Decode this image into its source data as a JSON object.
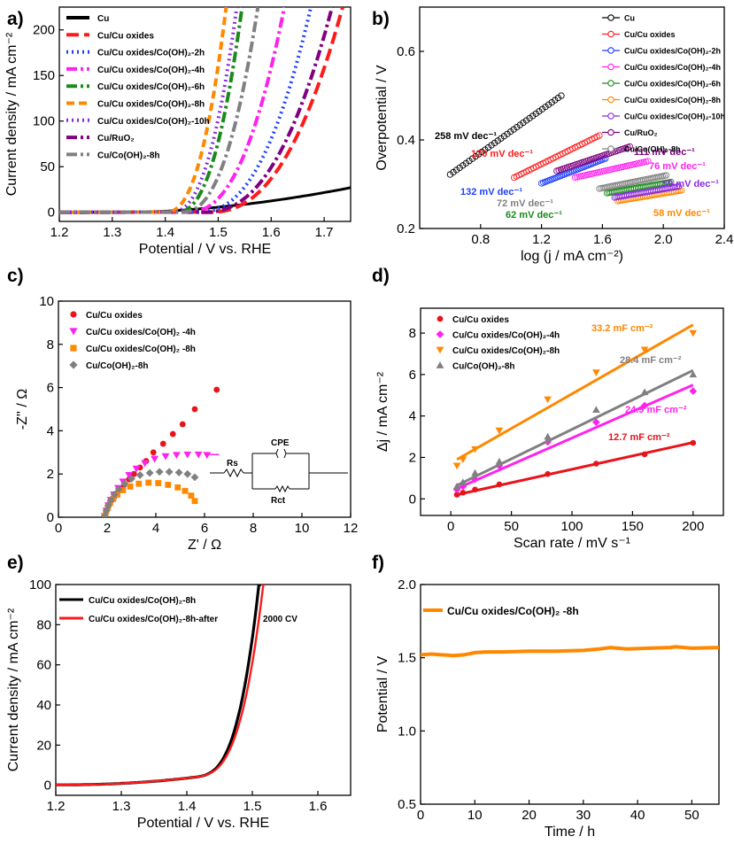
{
  "chart_data": [
    {
      "panel": "a)",
      "type": "line",
      "xlabel": "Potential / V vs. RHE",
      "ylabel": "Current density / mA cm⁻²",
      "xlim": [
        1.2,
        1.75
      ],
      "ylim": [
        -10,
        225
      ],
      "xticks": [
        "1.2",
        "1.3",
        "1.4",
        "1.5",
        "1.6",
        "1.7"
      ],
      "yticks": [
        "0",
        "50",
        "100",
        "150",
        "200"
      ],
      "series": [
        {
          "name": "Cu",
          "color": "#000000",
          "dash": "solid",
          "onset": 1.32,
          "end": 1.75,
          "end_value": 27
        },
        {
          "name": "Cu/Cu oxides",
          "color": "#ff1a1a",
          "dash": "longdash",
          "onset": 1.48,
          "end": 1.735,
          "end_value": 225
        },
        {
          "name": "Cu/Cu oxides/Co(OH)₂-2h",
          "color": "#1f3fff",
          "dash": "dot",
          "onset": 1.46,
          "end": 1.675,
          "end_value": 225
        },
        {
          "name": "Cu/Cu oxides/Co(OH)₂-4h",
          "color": "#ff22ee",
          "dash": "dashdot",
          "onset": 1.44,
          "end": 1.625,
          "end_value": 225
        },
        {
          "name": "Cu/Cu oxides/Co(OH)₂-6h",
          "color": "#1a8a1a",
          "dash": "dashdot",
          "onset": 1.42,
          "end": 1.545,
          "end_value": 225
        },
        {
          "name": "Cu/Cu oxides/Co(OH)₂-8h",
          "color": "#ff8800",
          "dash": "dash",
          "onset": 1.4,
          "end": 1.515,
          "end_value": 225
        },
        {
          "name": "Cu/Cu oxides/Co(OH)₂-10h",
          "color": "#8a2be2",
          "dash": "dot",
          "onset": 1.41,
          "end": 1.535,
          "end_value": 225
        },
        {
          "name": "Cu/RuO₂",
          "color": "#800080",
          "dash": "dashdot",
          "onset": 1.47,
          "end": 1.715,
          "end_value": 225
        },
        {
          "name": "Cu/Co(OH)₂-8h",
          "color": "#808080",
          "dash": "dashdot",
          "onset": 1.43,
          "end": 1.575,
          "end_value": 225
        }
      ]
    },
    {
      "panel": "b)",
      "type": "line",
      "xlabel": "log (j / mA cm⁻²)",
      "ylabel": "Overpotential / V",
      "xlim": [
        0.4,
        2.4
      ],
      "ylim": [
        0.2,
        0.7
      ],
      "xticks": [
        "0.8",
        "1.2",
        "1.6",
        "2.0",
        "2.4"
      ],
      "yticks": [
        "0.2",
        "0.4",
        "0.6"
      ],
      "series": [
        {
          "name": "Cu",
          "color": "#000000",
          "x": [
            0.6,
            1.33
          ],
          "y": [
            0.322,
            0.5
          ],
          "slope": "258 mV dec⁻¹"
        },
        {
          "name": "Cu/Cu oxides",
          "color": "#ff1a1a",
          "x": [
            1.02,
            1.58
          ],
          "y": [
            0.315,
            0.41
          ],
          "slope": "170 mV dec⁻¹"
        },
        {
          "name": "Cu/Cu oxides/Co(OH)₂-2h",
          "color": "#1f3fff",
          "x": [
            1.2,
            1.62
          ],
          "y": [
            0.302,
            0.358
          ],
          "slope": "132 mV dec⁻¹"
        },
        {
          "name": "Cu/Cu oxides/Co(OH)₂-4h",
          "color": "#ff22ee",
          "x": [
            1.42,
            1.9
          ],
          "y": [
            0.315,
            0.352
          ],
          "slope": "76 mV dec⁻¹"
        },
        {
          "name": "Cu/Cu oxides/Co(OH)₂-6h",
          "color": "#1a8a1a",
          "x": [
            1.63,
            2.05
          ],
          "y": [
            0.28,
            0.305
          ],
          "slope": "62 mV dec⁻¹"
        },
        {
          "name": "Cu/Cu oxides/Co(OH)₂-8h",
          "color": "#ff8800",
          "x": [
            1.7,
            2.12
          ],
          "y": [
            0.262,
            0.286
          ],
          "slope": "58 mV dec⁻¹"
        },
        {
          "name": "Cu/Cu oxides/Co(OH)₂-10h",
          "color": "#8a2be2",
          "x": [
            1.68,
            2.1
          ],
          "y": [
            0.27,
            0.295
          ],
          "slope": "59 mV dec⁻¹"
        },
        {
          "name": "Cu/RuO₂",
          "color": "#800080",
          "x": [
            1.3,
            1.78
          ],
          "y": [
            0.33,
            0.385
          ],
          "slope": "111 mV dec⁻¹"
        },
        {
          "name": "Cu/Co(OH)₂-8h",
          "color": "#808080",
          "x": [
            1.58,
            2.02
          ],
          "y": [
            0.29,
            0.32
          ],
          "slope": "72 mV dec⁻¹"
        }
      ]
    },
    {
      "panel": "c)",
      "type": "scatter",
      "xlabel": "Z' / Ω",
      "ylabel": "-Z'' / Ω",
      "xlim": [
        0,
        12
      ],
      "ylim": [
        0,
        10
      ],
      "xticks": [
        "0",
        "2",
        "4",
        "6",
        "8",
        "10",
        "12"
      ],
      "yticks": [
        "0",
        "2",
        "4",
        "6",
        "8",
        "10"
      ],
      "circuit": {
        "rs": "Rs",
        "cpe": "CPE",
        "rct": "Rct"
      },
      "series": [
        {
          "name": "Cu/Cu oxides",
          "color": "#e8141c",
          "marker": "circle",
          "x": [
            1.9,
            1.95,
            2.0,
            2.05,
            2.12,
            2.2,
            2.3,
            2.4,
            2.55,
            2.7,
            2.9,
            3.1,
            3.35,
            3.6,
            3.9,
            4.3,
            4.7,
            5.1,
            5.6,
            6.5
          ],
          "y": [
            0.05,
            0.2,
            0.35,
            0.5,
            0.65,
            0.8,
            0.95,
            1.1,
            1.3,
            1.5,
            1.75,
            2.0,
            2.3,
            2.6,
            3.0,
            3.4,
            3.85,
            4.3,
            5.0,
            5.9
          ]
        },
        {
          "name": "Cu/Cu oxides/Co(OH)₂ -4h",
          "color": "#ff22ee",
          "marker": "triangle-down",
          "x": [
            1.9,
            1.97,
            2.05,
            2.15,
            2.28,
            2.45,
            2.65,
            2.9,
            3.2,
            3.55,
            3.95,
            4.4,
            4.85,
            5.3,
            5.75,
            6.1
          ],
          "y": [
            0.05,
            0.3,
            0.55,
            0.8,
            1.05,
            1.35,
            1.65,
            1.95,
            2.25,
            2.5,
            2.7,
            2.82,
            2.88,
            2.9,
            2.9,
            2.88
          ]
        },
        {
          "name": "Cu/Cu oxides/Co(OH)₂ -8h",
          "color": "#ff8800",
          "marker": "square",
          "x": [
            1.9,
            1.96,
            2.03,
            2.12,
            2.25,
            2.42,
            2.65,
            2.95,
            3.3,
            3.7,
            4.1,
            4.5,
            4.9,
            5.2,
            5.45,
            5.6
          ],
          "y": [
            0.05,
            0.25,
            0.45,
            0.65,
            0.85,
            1.05,
            1.25,
            1.42,
            1.55,
            1.6,
            1.58,
            1.5,
            1.38,
            1.22,
            1.0,
            0.75
          ]
        },
        {
          "name": "Cu/Co(OH)₂-8h",
          "color": "#808080",
          "marker": "diamond",
          "x": [
            1.9,
            1.97,
            2.05,
            2.16,
            2.3,
            2.48,
            2.72,
            3.0,
            3.35,
            3.75,
            4.15,
            4.55,
            4.95,
            5.3,
            5.6
          ],
          "y": [
            0.05,
            0.3,
            0.55,
            0.8,
            1.05,
            1.3,
            1.55,
            1.78,
            1.95,
            2.05,
            2.1,
            2.1,
            2.07,
            2.0,
            1.85
          ]
        }
      ]
    },
    {
      "panel": "d)",
      "type": "scatter",
      "xlabel": "Scan rate / mV s⁻¹",
      "ylabel": "Δj / mA cm⁻²",
      "xlim": [
        -25,
        225
      ],
      "ylim": [
        -0.8,
        9.2
      ],
      "xticks": [
        "0",
        "50",
        "100",
        "150",
        "200"
      ],
      "yticks": [
        "0",
        "2",
        "4",
        "6",
        "8"
      ],
      "series": [
        {
          "name": "Cu/Cu oxides",
          "color": "#e8141c",
          "marker": "circle",
          "x": [
            5,
            10,
            20,
            40,
            80,
            120,
            160,
            200
          ],
          "y": [
            0.2,
            0.3,
            0.45,
            0.7,
            1.2,
            1.7,
            2.15,
            2.7
          ],
          "fit": [
            0.2,
            2.72
          ],
          "label": "12.7 mF cm⁻²"
        },
        {
          "name": "Cu/Cu oxides/Co(OH)₂-4h",
          "color": "#ff22ee",
          "marker": "diamond",
          "x": [
            5,
            10,
            20,
            40,
            80,
            120,
            160,
            200
          ],
          "y": [
            0.45,
            0.6,
            0.95,
            1.6,
            2.75,
            3.7,
            4.5,
            5.2
          ],
          "fit": [
            0.5,
            5.5
          ],
          "label": "24.9 mF cm⁻²"
        },
        {
          "name": "Cu/Cu oxides/Co(OH)₂-8h",
          "color": "#ff8800",
          "marker": "triangle-down",
          "x": [
            5,
            10,
            20,
            40,
            80,
            120,
            160,
            200
          ],
          "y": [
            1.6,
            1.9,
            2.4,
            3.3,
            4.8,
            6.1,
            7.2,
            8.0
          ],
          "fit": [
            1.9,
            8.4
          ],
          "label": "33.2 mF cm⁻²"
        },
        {
          "name": "Cu/Co(OH)₂-8h",
          "color": "#808080",
          "marker": "triangle-up",
          "x": [
            5,
            10,
            20,
            40,
            80,
            120,
            160,
            200
          ],
          "y": [
            0.6,
            0.8,
            1.25,
            1.8,
            3.0,
            4.3,
            5.15,
            6.0
          ],
          "fit": [
            0.65,
            6.2
          ],
          "label": "28.4 mF cm⁻²"
        }
      ]
    },
    {
      "panel": "e)",
      "type": "line",
      "xlabel": "Potential / V vs. RHE",
      "ylabel": "Current density / mA cm⁻²",
      "xlim": [
        1.2,
        1.65
      ],
      "ylim": [
        -5,
        100
      ],
      "xticks": [
        "1.2",
        "1.3",
        "1.4",
        "1.5",
        "1.6"
      ],
      "yticks": [
        "0",
        "20",
        "40",
        "60",
        "80",
        "100"
      ],
      "annotation": "2000 CV",
      "series": [
        {
          "name": "Cu/Cu oxides/Co(OH)₂-8h",
          "color": "#000000",
          "end": 1.513
        },
        {
          "name": "Cu/Cu oxides/Co(OH)₂-8h-after",
          "color": "#ff1a1a",
          "end": 1.52
        }
      ]
    },
    {
      "panel": "f)",
      "type": "line",
      "xlabel": "Time / h",
      "ylabel": "Potential / V",
      "xlim": [
        0,
        55
      ],
      "ylim": [
        0.5,
        2.0
      ],
      "xticks": [
        "0",
        "10",
        "20",
        "30",
        "40",
        "50"
      ],
      "yticks": [
        "0.5",
        "1.0",
        "1.5",
        "2.0"
      ],
      "series": [
        {
          "name": "Cu/Cu oxides/Co(OH)₂ -8h",
          "color": "#ff8800",
          "x": [
            0,
            2,
            4,
            6,
            8,
            10,
            12,
            15,
            20,
            25,
            30,
            33,
            35,
            38,
            42,
            46,
            47,
            50,
            55
          ],
          "y": [
            1.52,
            1.525,
            1.52,
            1.515,
            1.52,
            1.535,
            1.54,
            1.54,
            1.545,
            1.545,
            1.55,
            1.56,
            1.57,
            1.56,
            1.565,
            1.57,
            1.575,
            1.565,
            1.57
          ]
        }
      ]
    }
  ]
}
